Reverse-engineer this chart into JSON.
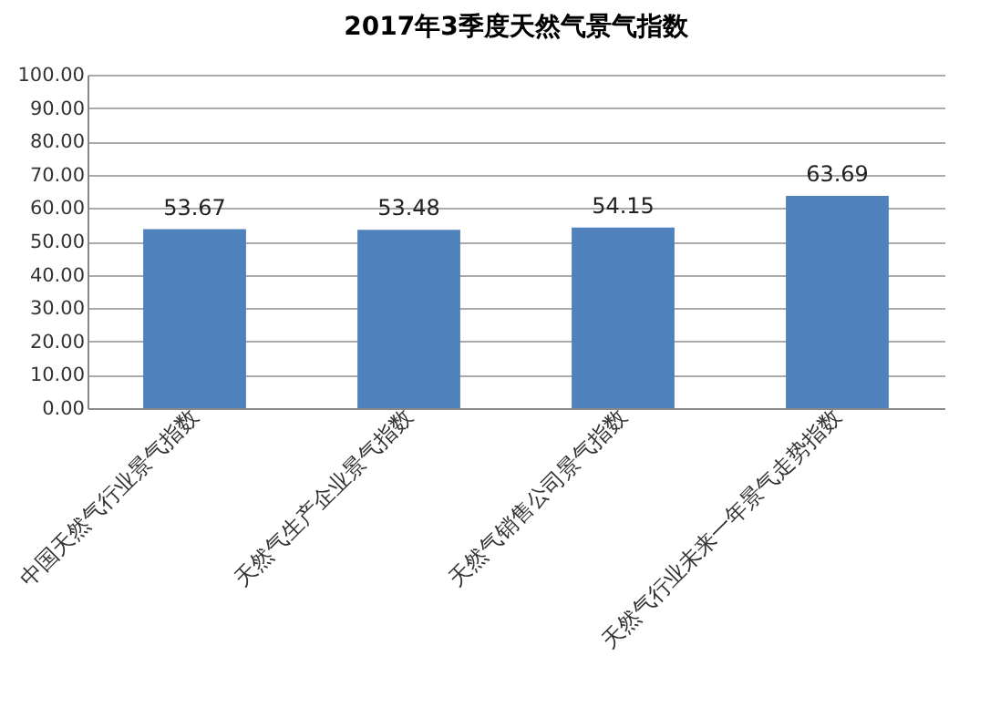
{
  "chart_data": {
    "type": "bar",
    "title": "2017年3季度天然气景气指数",
    "categories": [
      "中国天然气行业景气指数",
      "天然气生产企业景气指数",
      "天然气销售公司景气指数",
      "天然气行业未来一年景气走势指数"
    ],
    "values": [
      53.67,
      53.48,
      54.15,
      63.69
    ],
    "color": "#4f81bd",
    "data_labels": true,
    "ylim": [
      0,
      100
    ],
    "yticks": [
      {
        "value": 0,
        "label": "0.00"
      },
      {
        "value": 10,
        "label": "10.00"
      },
      {
        "value": 20,
        "label": "20.00"
      },
      {
        "value": 30,
        "label": "30.00"
      },
      {
        "value": 40,
        "label": "40.00"
      },
      {
        "value": 50,
        "label": "50.00"
      },
      {
        "value": 60,
        "label": "60.00"
      },
      {
        "value": 70,
        "label": "70.00"
      },
      {
        "value": 80,
        "label": "80.00"
      },
      {
        "value": 90,
        "label": "90.00"
      },
      {
        "value": 100,
        "label": "100.00"
      }
    ],
    "grid": "y"
  }
}
